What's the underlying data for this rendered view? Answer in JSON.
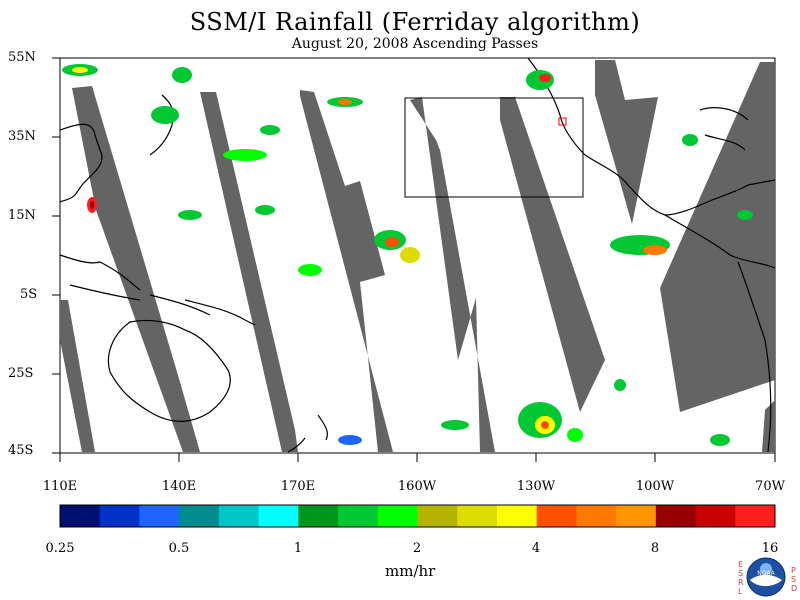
{
  "title": "SSM/I Rainfall (Ferriday algorithm)",
  "subtitle": "August 20, 2008  Ascending Passes",
  "latitude_labels": [
    "55N",
    "35N",
    "15N",
    "5S",
    "25S",
    "45S"
  ],
  "longitude_labels": [
    "110E",
    "140E",
    "170E",
    "160W",
    "130W",
    "100W",
    "70W"
  ],
  "colorbar": {
    "colors": [
      "#00106e",
      "#0032c8",
      "#1e64ff",
      "#008c8c",
      "#00c8c8",
      "#00ffff",
      "#00961e",
      "#00c832",
      "#00ff00",
      "#b4b400",
      "#dcdc00",
      "#ffff00",
      "#ff5000",
      "#ff7800",
      "#ff9600",
      "#960000",
      "#c80000",
      "#ff1e1e"
    ],
    "labels": [
      "0.25",
      "0.5",
      "1",
      "2",
      "4",
      "8",
      "16"
    ],
    "unit": "mm/hr"
  },
  "logo": {
    "text": "NOAA",
    "left_letters": [
      "E",
      "S",
      "R",
      "L"
    ],
    "right_letters": [
      "P",
      "S",
      "D"
    ]
  },
  "style": {
    "swath_color": "#646464",
    "coast_color": "#000000"
  }
}
